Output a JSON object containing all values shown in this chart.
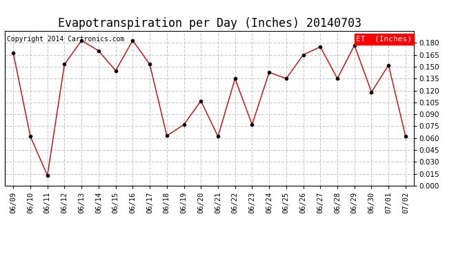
{
  "title": "Evapotranspiration per Day (Inches) 20140703",
  "copyright_text": "Copyright 2014 Cartronics.com",
  "legend_label": "ET  (Inches)",
  "legend_bg": "#ff0000",
  "legend_fg": "#ffffff",
  "x_labels": [
    "06/09",
    "06/10",
    "06/11",
    "06/12",
    "06/13",
    "06/14",
    "06/15",
    "06/16",
    "06/17",
    "06/18",
    "06/19",
    "06/20",
    "06/21",
    "06/22",
    "06/23",
    "06/24",
    "06/25",
    "06/26",
    "06/27",
    "06/28",
    "06/29",
    "06/30",
    "07/01",
    "07/02"
  ],
  "y_values": [
    0.167,
    0.062,
    0.013,
    0.153,
    0.183,
    0.17,
    0.145,
    0.183,
    0.153,
    0.063,
    0.077,
    0.107,
    0.062,
    0.135,
    0.077,
    0.143,
    0.135,
    0.165,
    0.175,
    0.135,
    0.177,
    0.118,
    0.152,
    0.062
  ],
  "line_color": "#cc0000",
  "marker_color": "#000000",
  "bg_color": "#ffffff",
  "grid_color": "#c8c8c8",
  "ylim": [
    0.0,
    0.195
  ],
  "yticks": [
    0.0,
    0.015,
    0.03,
    0.045,
    0.06,
    0.075,
    0.09,
    0.105,
    0.12,
    0.135,
    0.15,
    0.165,
    0.18
  ],
  "title_fontsize": 12,
  "copyright_fontsize": 7,
  "tick_fontsize": 7.5,
  "legend_fontsize": 8
}
